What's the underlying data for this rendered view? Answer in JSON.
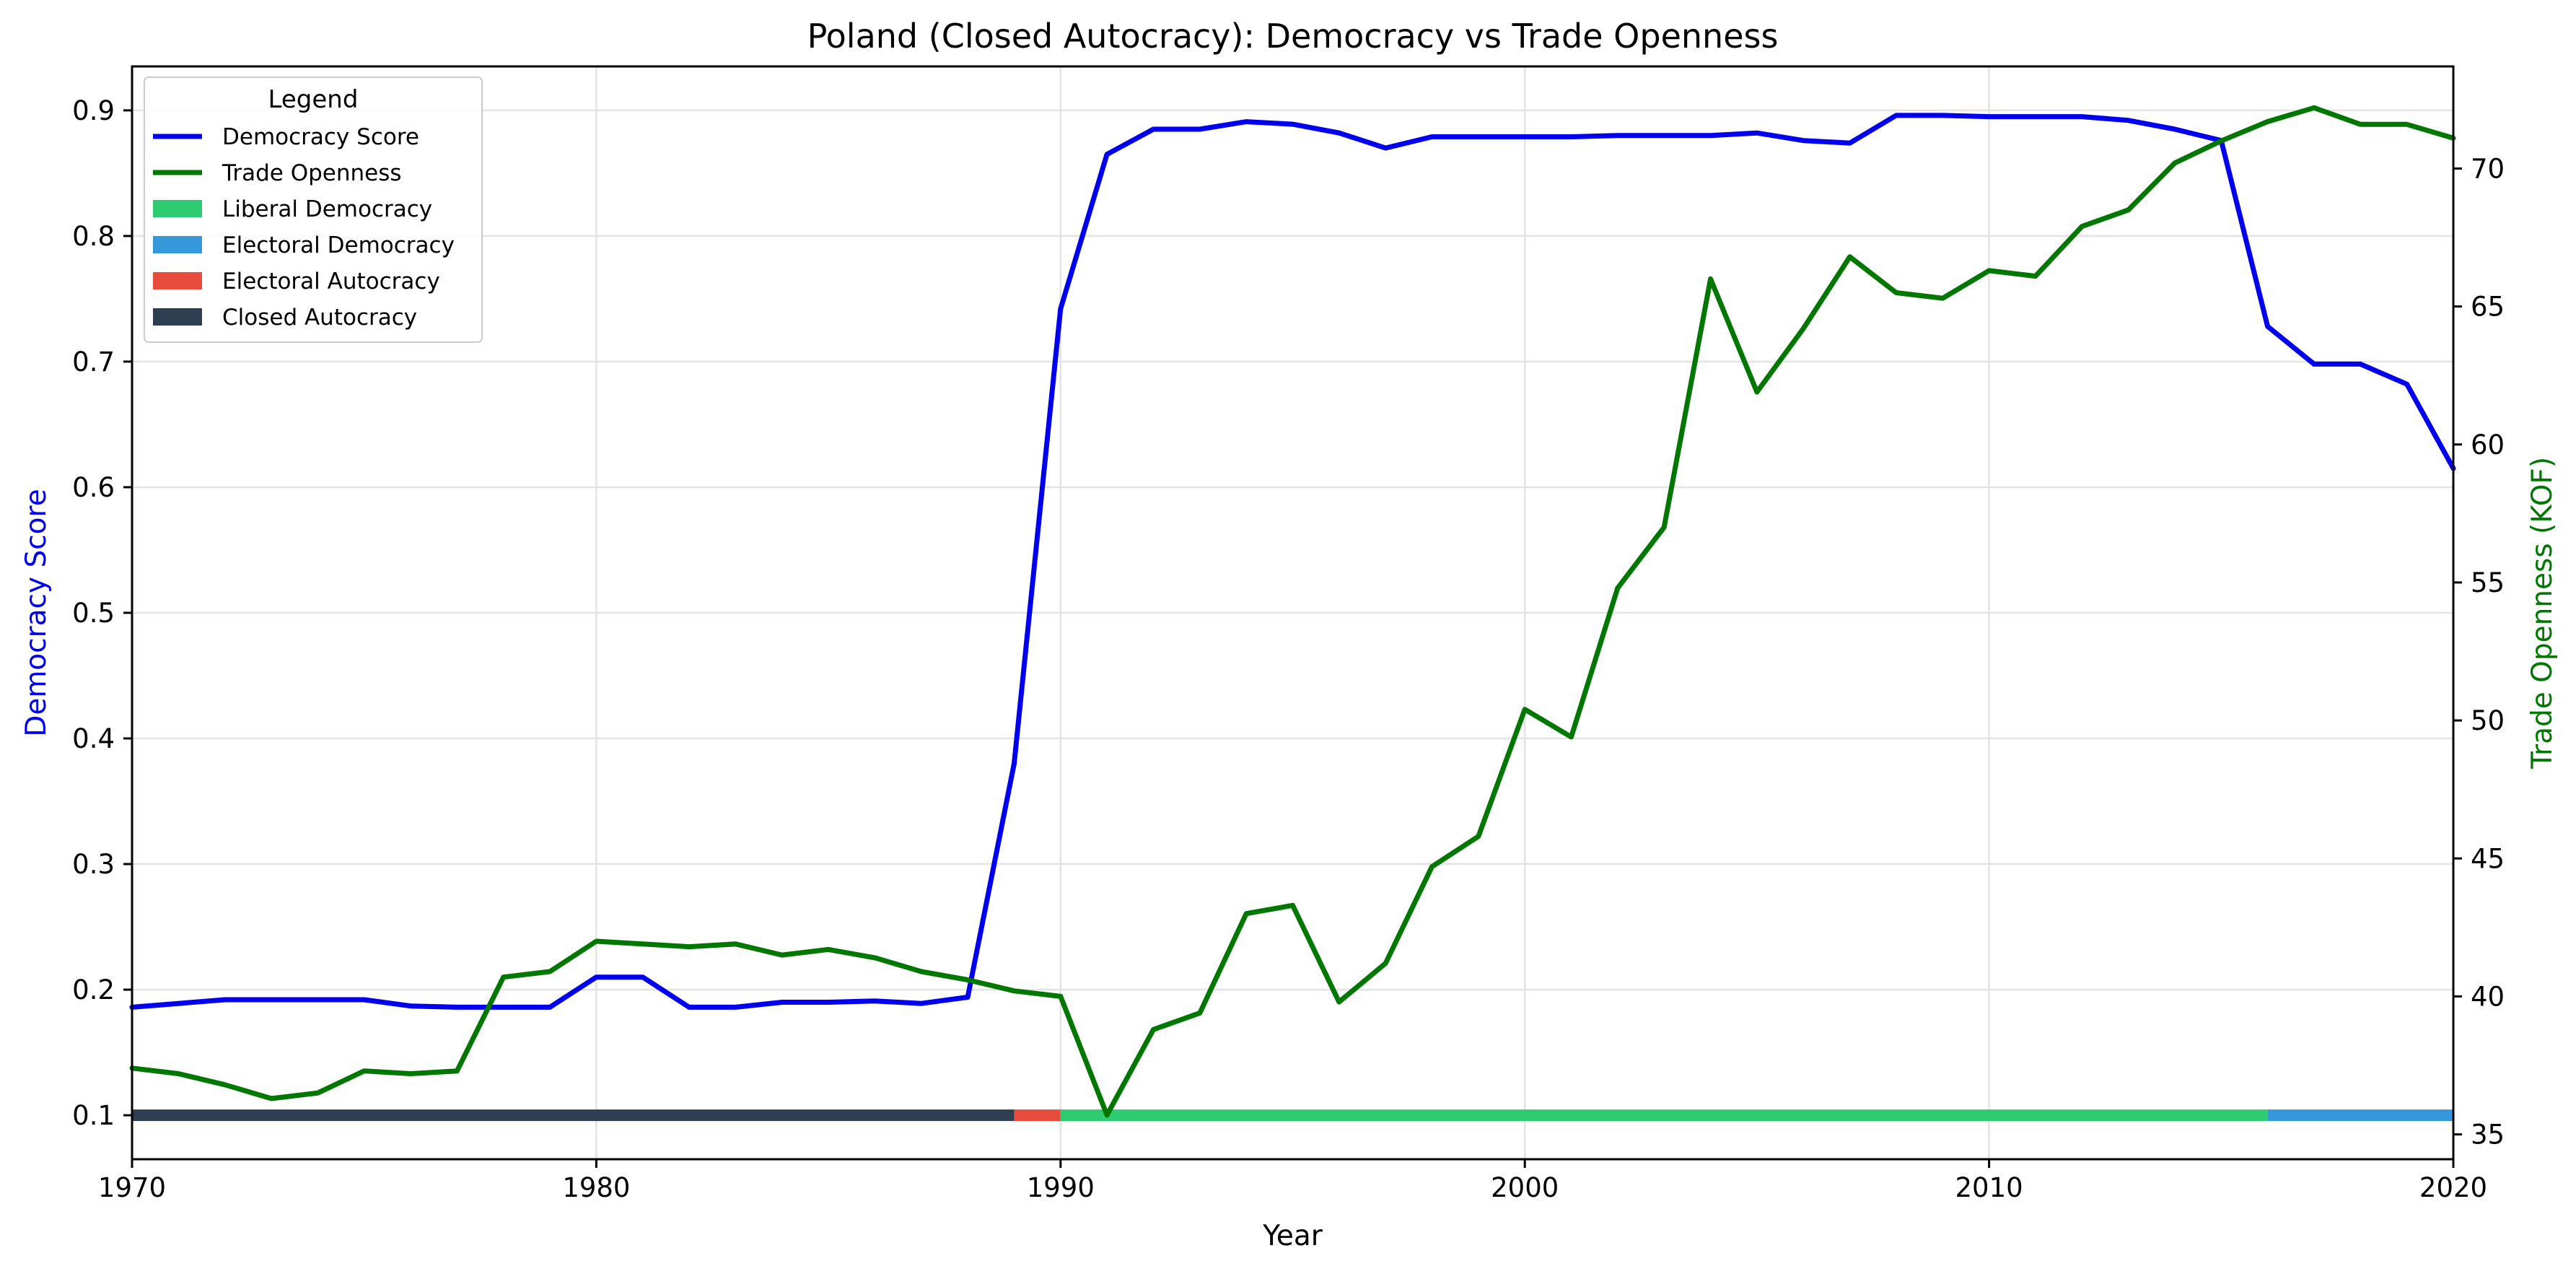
{
  "chart_data": {
    "type": "line",
    "title": "Poland (Closed Autocracy): Democracy vs Trade Openness",
    "xlabel": "Year",
    "ylabel": "Democracy Score",
    "y2label": "Trade Openness (KOF)",
    "xlim": [
      1970,
      2020
    ],
    "ylim": [
      0.065,
      0.935
    ],
    "y2lim": [
      34.1,
      73.7
    ],
    "xticks": [
      1970,
      1980,
      1990,
      2000,
      2010,
      2020
    ],
    "yticks": [
      0.1,
      0.2,
      0.3,
      0.4,
      0.5,
      0.6,
      0.7,
      0.8,
      0.9
    ],
    "y2ticks": [
      35,
      40,
      45,
      50,
      55,
      60,
      65,
      70
    ],
    "grid": true,
    "legend_title": "Legend",
    "legend_position": "top-left",
    "x": [
      1970,
      1971,
      1972,
      1973,
      1974,
      1975,
      1976,
      1977,
      1978,
      1979,
      1980,
      1981,
      1982,
      1983,
      1984,
      1985,
      1986,
      1987,
      1988,
      1989,
      1990,
      1991,
      1992,
      1993,
      1994,
      1995,
      1996,
      1997,
      1998,
      1999,
      2000,
      2001,
      2002,
      2003,
      2004,
      2005,
      2006,
      2007,
      2008,
      2009,
      2010,
      2011,
      2012,
      2013,
      2014,
      2015,
      2016,
      2017,
      2018,
      2019,
      2020
    ],
    "series": [
      {
        "name": "Democracy Score",
        "axis": "left",
        "color": "#0000ee",
        "values": [
          0.186,
          0.189,
          0.192,
          0.192,
          0.192,
          0.192,
          0.187,
          0.186,
          0.186,
          0.186,
          0.21,
          0.21,
          0.186,
          0.186,
          0.19,
          0.19,
          0.191,
          0.189,
          0.194,
          0.38,
          0.742,
          0.865,
          0.885,
          0.885,
          0.891,
          0.889,
          0.882,
          0.87,
          0.879,
          0.879,
          0.879,
          0.879,
          0.88,
          0.88,
          0.88,
          0.882,
          0.876,
          0.874,
          0.896,
          0.896,
          0.895,
          0.895,
          0.895,
          0.892,
          0.885,
          0.876,
          0.728,
          0.698,
          0.698,
          0.682,
          0.615
        ]
      },
      {
        "name": "Trade Openness",
        "axis": "right",
        "color": "#007700",
        "values": [
          37.4,
          37.2,
          36.8,
          36.3,
          36.5,
          37.3,
          37.2,
          37.3,
          40.7,
          40.9,
          42.0,
          41.9,
          41.8,
          41.9,
          41.5,
          41.7,
          41.4,
          40.9,
          40.6,
          40.2,
          40.0,
          35.7,
          38.8,
          39.4,
          43.0,
          43.3,
          39.8,
          41.2,
          44.7,
          45.8,
          50.4,
          49.4,
          54.8,
          57.0,
          66.0,
          61.9,
          64.2,
          66.8,
          65.5,
          65.3,
          66.3,
          66.1,
          67.9,
          68.5,
          70.2,
          71.0,
          71.7,
          72.2,
          71.6,
          71.6,
          71.1
        ]
      }
    ],
    "regime_bands": [
      {
        "name": "Closed Autocracy",
        "start": 1970,
        "end": 1989,
        "color": "#2e3f52"
      },
      {
        "name": "Electoral Autocracy",
        "start": 1989,
        "end": 1990,
        "color": "#e74c3c"
      },
      {
        "name": "Liberal Democracy",
        "start": 1990,
        "end": 2016,
        "color": "#2ecc71"
      },
      {
        "name": "Electoral Democracy",
        "start": 2016,
        "end": 2020,
        "color": "#3498db"
      }
    ],
    "regime_band_y": 0.1,
    "legend_entries": [
      {
        "name": "Democracy Score",
        "kind": "line",
        "color": "#0000ee"
      },
      {
        "name": "Trade Openness",
        "kind": "line",
        "color": "#007700"
      },
      {
        "name": "Liberal Democracy",
        "kind": "patch",
        "color": "#2ecc71"
      },
      {
        "name": "Electoral Democracy",
        "kind": "patch",
        "color": "#3498db"
      },
      {
        "name": "Electoral Autocracy",
        "kind": "patch",
        "color": "#e74c3c"
      },
      {
        "name": "Closed Autocracy",
        "kind": "patch",
        "color": "#2e3f52"
      }
    ]
  }
}
